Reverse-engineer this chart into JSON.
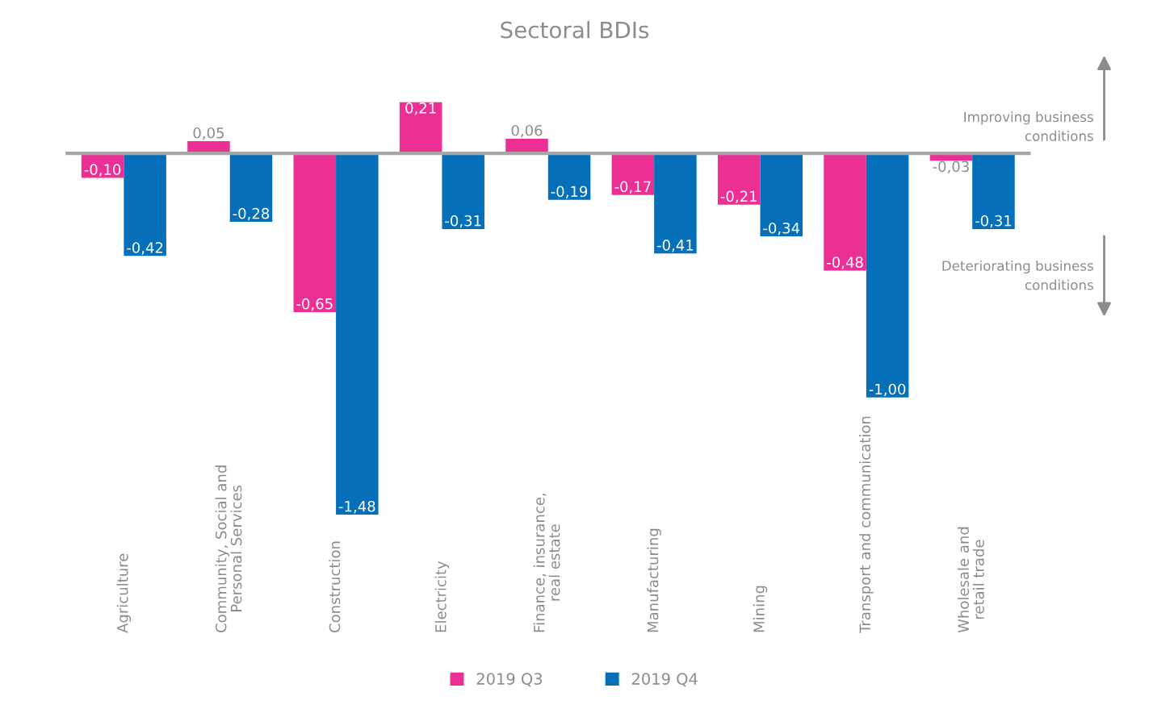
{
  "chart_data": {
    "type": "bar",
    "title": "Sectoral BDIs",
    "categories": [
      "Agriculture",
      "Community, Social and\nPersonal Services",
      "Construction",
      "Electricity",
      "Finance, insurance,\nreal estate",
      "Manufacturing",
      "Mining",
      "Transport and communication",
      "Wholesale and\nretail trade"
    ],
    "series": [
      {
        "name": "2019 Q3",
        "color": "#ec2f94",
        "values": [
          -0.1,
          0.05,
          -0.65,
          0.21,
          0.06,
          -0.17,
          -0.21,
          -0.48,
          -0.03
        ],
        "value_labels": [
          "-0,10",
          "0,05",
          "-0,65",
          "0,21",
          "0,06",
          "-0,17",
          "-0,21",
          "-0,48",
          "-0,03"
        ]
      },
      {
        "name": "2019 Q4",
        "color": "#0570b9",
        "values": [
          -0.42,
          -0.28,
          -1.48,
          -0.31,
          -0.19,
          -0.41,
          -0.34,
          -1.0,
          -0.31
        ],
        "value_labels": [
          "-0,42",
          "-0,28",
          "-1,48",
          "-0,31",
          "-0,19",
          "-0,41",
          "-0,34",
          "-1,00",
          "-0,31"
        ]
      }
    ],
    "annotations": [
      "Improving business\nconditions",
      "Deteriorating business\nconditions"
    ],
    "legend": "bottom",
    "grid": false
  }
}
